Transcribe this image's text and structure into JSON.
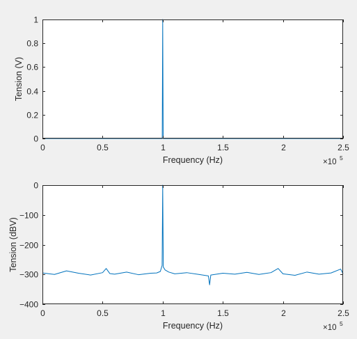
{
  "chart_data": [
    {
      "type": "line",
      "xlabel": "Frequency (Hz)",
      "ylabel": "Tension (V)",
      "xlim": [
        0,
        250000
      ],
      "ylim": [
        0,
        1
      ],
      "x_exponent_label": "×10",
      "x_exponent_power": "5",
      "xticks": [
        0,
        50000,
        100000,
        150000,
        200000,
        250000
      ],
      "xtick_labels": [
        "0",
        "0.5",
        "1",
        "1.5",
        "2",
        "2.5"
      ],
      "yticks": [
        0,
        0.2,
        0.4,
        0.6,
        0.8,
        1
      ],
      "ytick_labels": [
        "0",
        "0.2",
        "0.4",
        "0.6",
        "0.8",
        "1"
      ],
      "grid": false,
      "color": "#0072bd",
      "series": [
        {
          "x": [
            0,
            99200,
            99600,
            100000,
            100400,
            100800,
            250000
          ],
          "y": [
            0,
            0,
            0,
            1,
            0,
            0,
            0
          ]
        }
      ]
    },
    {
      "type": "line",
      "xlabel": "Frequency (Hz)",
      "ylabel": "Tension (dBV)",
      "xlim": [
        0,
        250000
      ],
      "ylim": [
        -400,
        0
      ],
      "x_exponent_label": "×10",
      "x_exponent_power": "5",
      "xticks": [
        0,
        50000,
        100000,
        150000,
        200000,
        250000
      ],
      "xtick_labels": [
        "0",
        "0.5",
        "1",
        "1.5",
        "2",
        "2.5"
      ],
      "yticks": [
        -400,
        -300,
        -200,
        -100,
        0
      ],
      "ytick_labels": [
        "-400",
        "-300",
        "-200",
        "-100",
        "0"
      ],
      "grid": false,
      "color": "#0072bd",
      "noise_floor": -298,
      "series": [
        {
          "x": [
            0,
            10000,
            20000,
            30000,
            40000,
            50000,
            53000,
            56000,
            60000,
            70000,
            80000,
            90000,
            95000,
            98000,
            99500,
            100000,
            100500,
            102000,
            105000,
            110000,
            120000,
            130000,
            138000,
            139000,
            140000,
            150000,
            160000,
            170000,
            180000,
            190000,
            196000,
            200000,
            210000,
            220000,
            230000,
            240000,
            248000,
            250000
          ],
          "y": [
            -295,
            -300,
            -288,
            -296,
            -302,
            -294,
            -280,
            -297,
            -299,
            -292,
            -301,
            -296,
            -295,
            -290,
            -270,
            0,
            -275,
            -285,
            -292,
            -298,
            -294,
            -300,
            -305,
            -335,
            -302,
            -296,
            -299,
            -293,
            -300,
            -294,
            -280,
            -298,
            -303,
            -292,
            -299,
            -295,
            -282,
            -298
          ]
        }
      ]
    }
  ]
}
